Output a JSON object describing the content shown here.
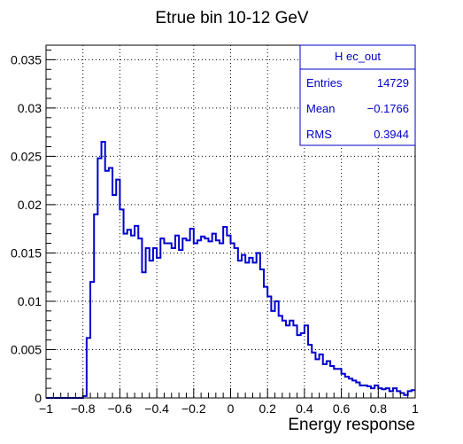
{
  "chart_data": {
    "type": "histogram",
    "title": "Etrue bin 10-12 GeV",
    "xlabel": "Energy response",
    "ylabel": "",
    "xlim": [
      -1,
      1
    ],
    "ylim": [
      0,
      0.0365
    ],
    "grid": true,
    "x_ticks": [
      -1,
      -0.8,
      -0.6,
      -0.4,
      -0.2,
      0,
      0.2,
      0.4,
      0.6,
      0.8,
      1
    ],
    "x_tick_labels": [
      "−1",
      "−0.8",
      "−0.6",
      "−0.4",
      "−0.2",
      "0",
      "0.2",
      "0.4",
      "0.6",
      "0.8",
      "1"
    ],
    "y_ticks": [
      0,
      0.005,
      0.01,
      0.015,
      0.02,
      0.025,
      0.03,
      0.035
    ],
    "y_tick_labels": [
      "0",
      "0.005",
      "0.01",
      "0.015",
      "0.02",
      "0.025",
      "0.03",
      "0.035"
    ],
    "line_color": "#0000cc",
    "bins": {
      "xmin": -1,
      "width": 0.02,
      "values": [
        0,
        0,
        0,
        0,
        0,
        0,
        0,
        0,
        0,
        0,
        0.0002,
        0.0062,
        0.012,
        0.019,
        0.0248,
        0.0265,
        0.0235,
        0.0238,
        0.021,
        0.0226,
        0.0195,
        0.017,
        0.0174,
        0.0168,
        0.0178,
        0.0165,
        0.013,
        0.0155,
        0.0142,
        0.0155,
        0.0145,
        0.0165,
        0.016,
        0.016,
        0.0155,
        0.0168,
        0.0153,
        0.0165,
        0.0163,
        0.0175,
        0.016,
        0.0163,
        0.0167,
        0.0165,
        0.0162,
        0.017,
        0.0163,
        0.016,
        0.0177,
        0.0168,
        0.016,
        0.0155,
        0.0142,
        0.0148,
        0.014,
        0.0145,
        0.014,
        0.015,
        0.0133,
        0.0115,
        0.0105,
        0.009,
        0.01,
        0.0085,
        0.008,
        0.0075,
        0.008,
        0.0075,
        0.0065,
        0.0067,
        0.0075,
        0.0055,
        0.0047,
        0.004,
        0.0045,
        0.0035,
        0.0038,
        0.0033,
        0.003,
        0.003,
        0.0025,
        0.0022,
        0.002,
        0.0018,
        0.0016,
        0.0013,
        0.0013,
        0.0012,
        0.001,
        0.0013,
        0.001,
        0.0009,
        0.001,
        0.0007,
        0.001,
        0.0007,
        0.0005,
        0.0003,
        0.0007,
        0.0008
      ]
    },
    "stats_box": {
      "title": "H ec_out",
      "rows": [
        {
          "label": "Entries",
          "value": "14729"
        },
        {
          "label": "Mean",
          "value": "−0.1766"
        },
        {
          "label": "RMS",
          "value": "0.3944"
        }
      ]
    }
  }
}
